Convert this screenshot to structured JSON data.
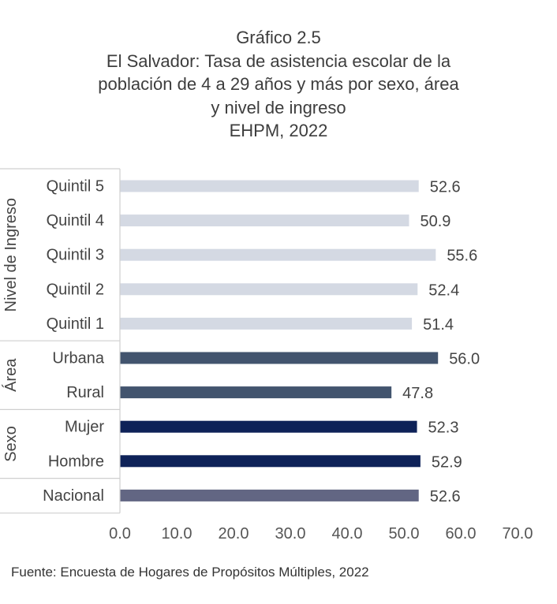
{
  "title": {
    "lines": [
      "Gráfico 2.5",
      "El Salvador: Tasa de asistencia escolar de la",
      "población de 4 a 29 años y más por sexo, área",
      "y nivel de ingreso",
      "EHPM, 2022"
    ]
  },
  "source": "Fuente: Encuesta de Hogares de Propósitos Múltiples, 2022",
  "colors": {
    "quintiles": "#d4d9e3",
    "area": "#42546e",
    "sexo": "#0e2258",
    "nacional": "#626683",
    "text": "#444444",
    "grid_lines": "#cfcfcf"
  },
  "chart_data": {
    "type": "bar",
    "orientation": "horizontal",
    "groups": [
      {
        "label": "Nivel de Ingreso",
        "categories": [
          "Quintil 5",
          "Quintil 4",
          "Quintil 3",
          "Quintil 2",
          "Quintil 1"
        ],
        "values": [
          52.6,
          50.9,
          55.6,
          52.4,
          51.4
        ],
        "color": "#d4d9e3"
      },
      {
        "label": "Área",
        "categories": [
          "Urbana",
          "Rural"
        ],
        "values": [
          56.0,
          47.8
        ],
        "color": "#42546e"
      },
      {
        "label": "Sexo",
        "categories": [
          "Mujer",
          "Hombre"
        ],
        "values": [
          52.3,
          52.9
        ],
        "color": "#0e2258"
      },
      {
        "label": "",
        "categories": [
          "Nacional"
        ],
        "values": [
          52.6
        ],
        "color": "#626683"
      }
    ],
    "xlim": [
      0,
      70
    ],
    "xticks": [
      "0.0",
      "10.0",
      "20.0",
      "30.0",
      "40.0",
      "50.0",
      "60.0",
      "70.0"
    ],
    "data_labels": [
      "52.6",
      "50.9",
      "55.6",
      "52.4",
      "51.4",
      "56.0",
      "47.8",
      "52.3",
      "52.9",
      "52.6"
    ],
    "grid": false,
    "legend": "none"
  }
}
